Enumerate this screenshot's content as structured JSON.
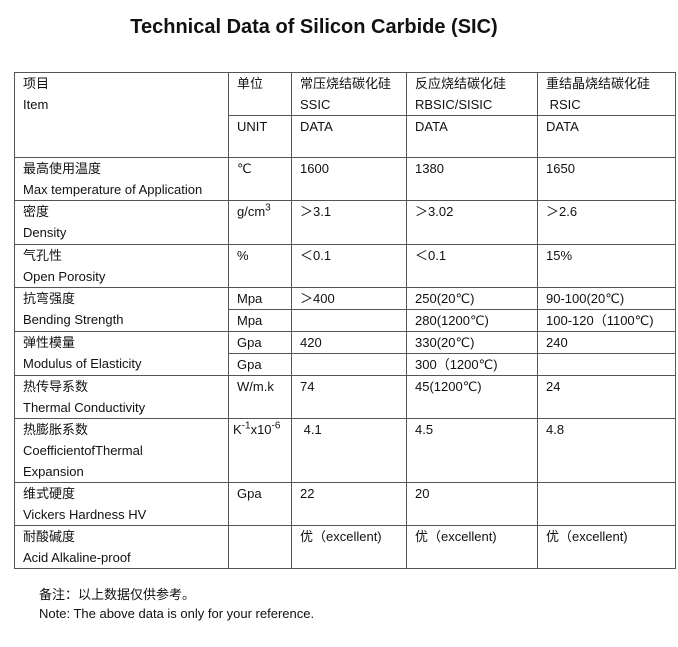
{
  "title": "Technical Data of Silicon Carbide (SIC)",
  "header": {
    "item_cn": "项目",
    "item_en": "Item",
    "unit_cn": "单位",
    "unit_en": "UNIT",
    "columns": [
      {
        "cn": "常压烧结碳化硅",
        "en": "SSIC",
        "sub": "DATA"
      },
      {
        "cn": "反应烧结碳化硅",
        "en": "RBSIC/SISIC",
        "sub": "DATA"
      },
      {
        "cn": "重结晶烧结碳化硅",
        "en": " RSIC",
        "sub": "DATA"
      }
    ]
  },
  "rows": {
    "max_temp": {
      "cn": "最高使用温度",
      "en": "Max temperature of Application",
      "unit": "℃",
      "v": [
        "1600",
        "1380",
        "1650"
      ]
    },
    "density": {
      "cn": "密度",
      "en": "Density",
      "unit": "g/cm",
      "unit_sup": "3",
      "v": [
        "＞3.1",
        "＞3.02",
        "＞2.6"
      ]
    },
    "porosity": {
      "cn": "气孔性",
      "en": "Open Porosity",
      "unit": "%",
      "v": [
        "＜0.1",
        "＜0.1",
        "15%"
      ]
    },
    "bending": {
      "cn": "抗弯强度",
      "en": "Bending Strength",
      "unit": [
        "Mpa",
        "Mpa"
      ],
      "v1": [
        "＞400",
        "250(20℃)",
        "90-100(20℃)"
      ],
      "v2": [
        "",
        "280(1200℃)",
        "100-120（1100℃)"
      ]
    },
    "elasticity": {
      "cn": "弹性模量",
      "en": "Modulus of Elasticity",
      "unit": [
        "Gpa",
        "Gpa"
      ],
      "v1": [
        "420",
        "330(20℃)",
        "240"
      ],
      "v2": [
        "",
        "300（1200℃)",
        ""
      ]
    },
    "conductivity": {
      "cn": "热传导系数",
      "en": "Thermal Conductivity",
      "unit": "W/m.k",
      "v": [
        "74",
        "45(1200℃)",
        "24"
      ]
    },
    "expansion": {
      "cn": "热膨胀系数",
      "en_words": [
        "Coefficient",
        "of",
        "Thermal"
      ],
      "en2": "Expansion",
      "unit_k": "K",
      "unit_sup1": "-1",
      "unit_x": "x10",
      "unit_sup2": "-6",
      "v": [
        " 4.1",
        "4.5",
        "4.8"
      ]
    },
    "hardness": {
      "cn": "维式硬度",
      "en": "Vickers Hardness HV",
      "unit": "Gpa",
      "v": [
        "22",
        "20",
        ""
      ]
    },
    "acid": {
      "cn": "耐酸碱度",
      "en": "Acid Alkaline-proof",
      "unit": "",
      "v": [
        "优（excellent)",
        "优（excellent)",
        "优（excellent)"
      ]
    }
  },
  "notes": {
    "cn": "备注：以上数据仅供参考。",
    "en": "Note: The above data is only for your reference."
  }
}
